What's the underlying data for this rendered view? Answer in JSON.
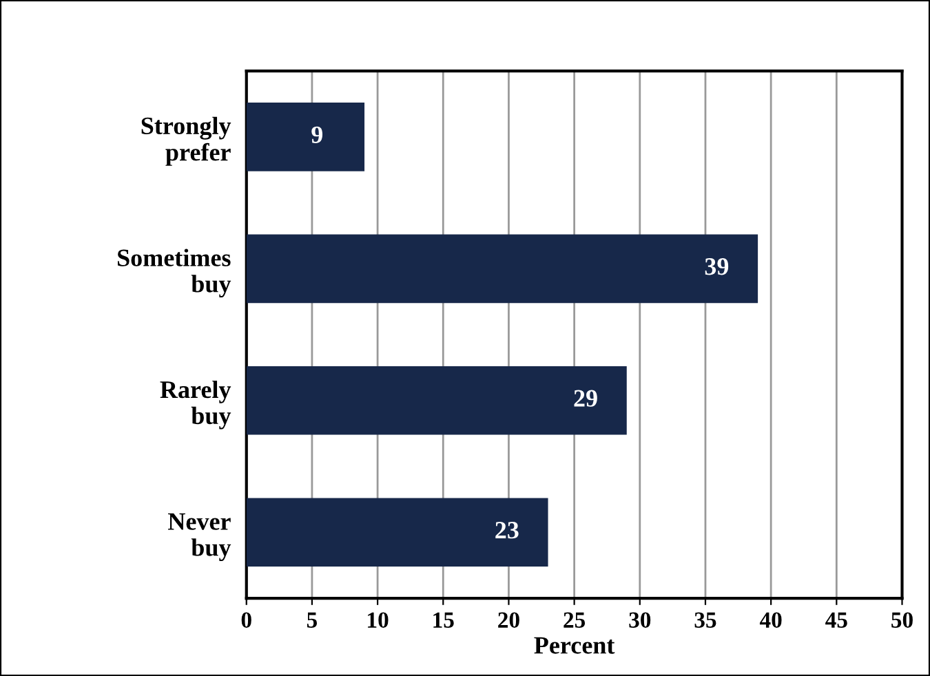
{
  "chart_data": {
    "type": "bar",
    "orientation": "horizontal",
    "xlabel": "Percent",
    "categories": [
      "Strongly\nprefer",
      "Sometimes\nbuy",
      "Rarely\nbuy",
      "Never\nbuy"
    ],
    "values": [
      9,
      39,
      29,
      23
    ],
    "color": "#17284a",
    "data_labels": true,
    "xlim": [
      0,
      50
    ],
    "xticks": [
      0,
      5,
      10,
      15,
      20,
      25,
      30,
      35,
      40,
      45,
      50
    ],
    "grid": "x"
  }
}
